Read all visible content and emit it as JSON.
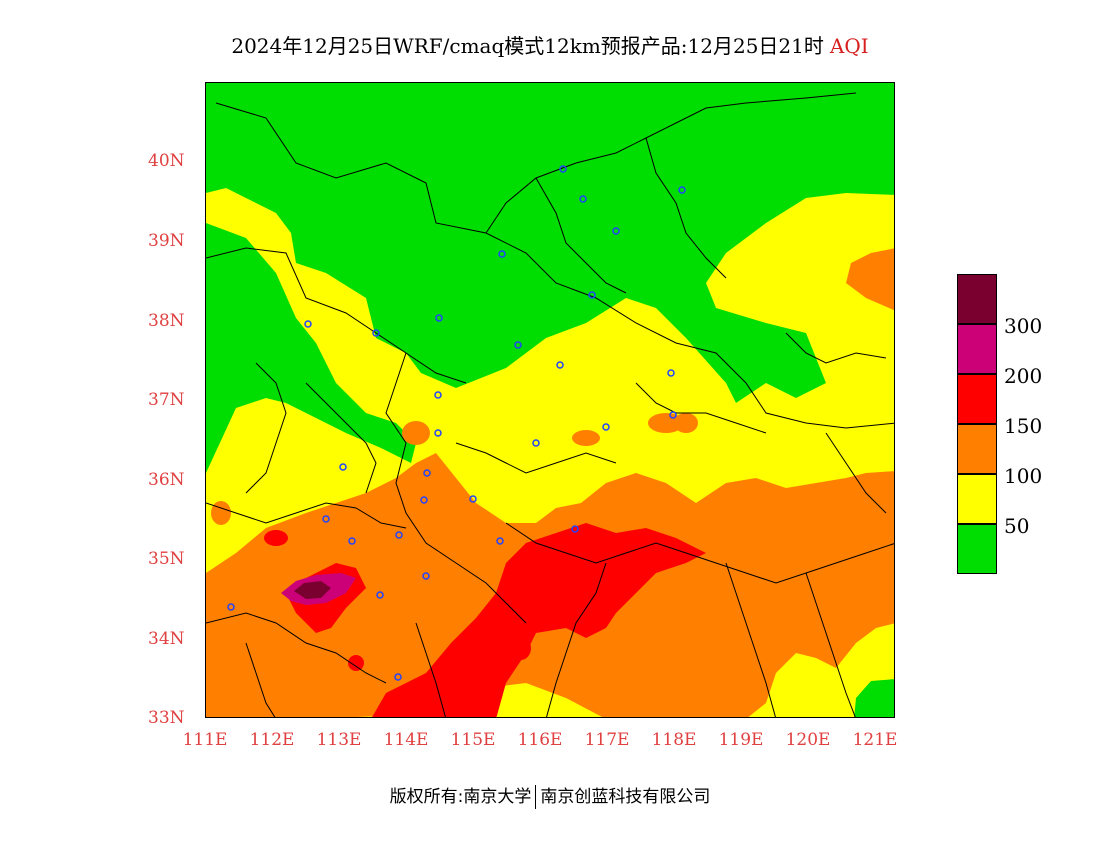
{
  "title": {
    "text": "2024年12月25日WRF/cmaq模式12km预报产品:12月25日21时",
    "variable": "AQI"
  },
  "axes": {
    "lat_labels": [
      "40N",
      "39N",
      "38N",
      "37N",
      "36N",
      "35N",
      "34N",
      "33N"
    ],
    "lon_labels": [
      "111E",
      "112E",
      "113E",
      "114E",
      "115E",
      "116E",
      "117E",
      "118E",
      "119E",
      "120E",
      "121E"
    ],
    "lat_range": [
      33,
      41
    ],
    "lon_range": [
      111,
      121.3
    ]
  },
  "legend": {
    "labels": [
      "300",
      "200",
      "150",
      "100",
      "50"
    ],
    "colors": {
      "over_300": "#7a0030",
      "200_300": "#cc0077",
      "150_200": "#ff0000",
      "100_150": "#ff7f00",
      "50_100": "#ffff00",
      "0_50": "#00dd00"
    }
  },
  "footer": {
    "left": "版权所有:南京大学",
    "right": "南京创蓝科技有限公司"
  }
}
